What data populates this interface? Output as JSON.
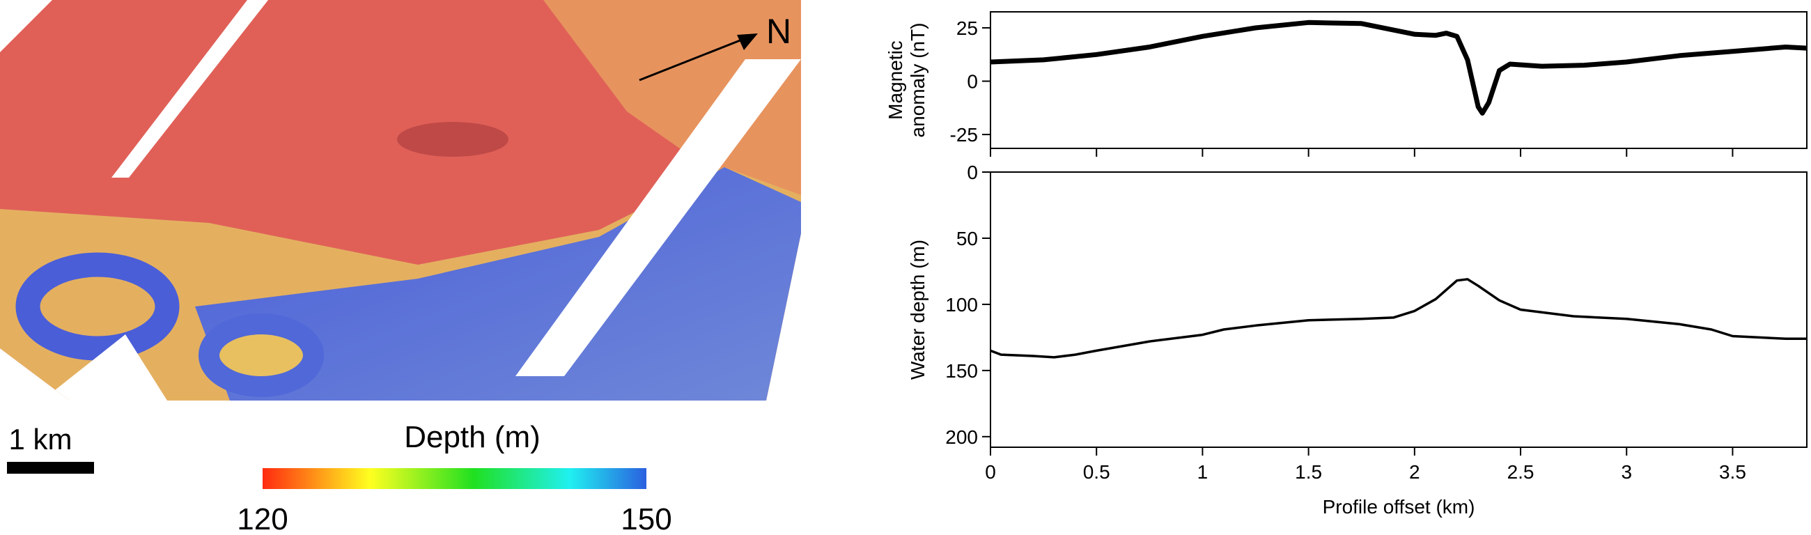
{
  "map": {
    "north_label": "N",
    "scale_label": "1 km",
    "colorbar": {
      "title": "Depth (m)",
      "ticks": [
        120,
        150
      ]
    }
  },
  "chart_data": [
    {
      "type": "line",
      "ylabel": [
        "Magnetic",
        "anomaly (nT)"
      ],
      "color": "#000000",
      "x": [
        0,
        0.25,
        0.5,
        0.75,
        1.0,
        1.25,
        1.5,
        1.75,
        2.0,
        2.1,
        2.15,
        2.2,
        2.25,
        2.3,
        2.32,
        2.35,
        2.4,
        2.45,
        2.6,
        2.8,
        3.0,
        3.25,
        3.5,
        3.75,
        3.85
      ],
      "values": [
        9,
        10,
        12.5,
        16,
        21,
        25,
        27.5,
        27,
        22,
        21.5,
        22.5,
        21,
        10,
        -12,
        -15,
        -10,
        5,
        8,
        7,
        7.5,
        9,
        12,
        14,
        16,
        15.5
      ],
      "xlim": [
        0,
        3.85
      ],
      "xticks": [
        0,
        0.5,
        1,
        1.5,
        2,
        2.5,
        3,
        3.5
      ],
      "ylim": [
        -31.5,
        32.5
      ],
      "yticks": [
        -25,
        0,
        25
      ]
    },
    {
      "type": "line",
      "ylabel": [
        "Water depth (m)"
      ],
      "xlabel": "Profile offset (km)",
      "color": "#000000",
      "x": [
        0,
        0.05,
        0.2,
        0.3,
        0.4,
        0.5,
        0.75,
        1.0,
        1.1,
        1.25,
        1.5,
        1.75,
        1.9,
        2.0,
        2.1,
        2.2,
        2.25,
        2.3,
        2.4,
        2.5,
        2.75,
        3.0,
        3.25,
        3.4,
        3.5,
        3.75,
        3.85
      ],
      "values": [
        135,
        138,
        139,
        140,
        138,
        135,
        128,
        123,
        119,
        116,
        112,
        111,
        110,
        105,
        96,
        82,
        81,
        86,
        97,
        104,
        109,
        111,
        115,
        119,
        124,
        126,
        126
      ],
      "xlim": [
        0,
        3.85
      ],
      "xticks": [
        0,
        0.5,
        1,
        1.5,
        2,
        2.5,
        3,
        3.5
      ],
      "ylim": [
        208,
        0
      ],
      "yticks": [
        0,
        50,
        100,
        150,
        200
      ]
    }
  ]
}
